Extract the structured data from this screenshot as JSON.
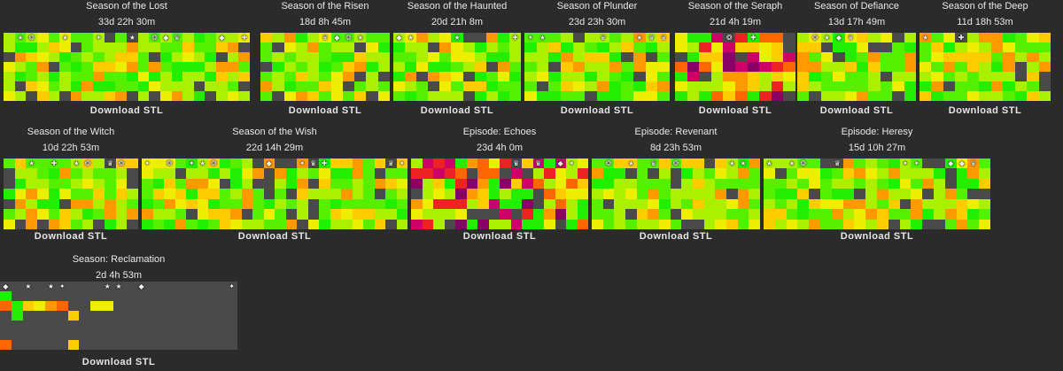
{
  "download_label": "Download STL",
  "seasons": [
    {
      "name": "Season of the Lost",
      "duration": "33d 22h 30m",
      "cols": 22,
      "rows": 7
    },
    {
      "name": "Season of the Risen",
      "duration": "18d 8h 45m",
      "cols": 11,
      "rows": 7
    },
    {
      "name": "Season of the Haunted",
      "duration": "20d 21h 8m",
      "cols": 11,
      "rows": 7
    },
    {
      "name": "Season of Plunder",
      "duration": "23d 23h 30m",
      "cols": 12,
      "rows": 7
    },
    {
      "name": "Season of the Seraph",
      "duration": "21d 4h 19m",
      "cols": 10,
      "rows": 7
    },
    {
      "name": "Season of Defiance",
      "duration": "13d 17h 49m",
      "cols": 10,
      "rows": 7
    },
    {
      "name": "Season of the Deep",
      "duration": "11d 18h 53m",
      "cols": 11,
      "rows": 7
    },
    {
      "name": "Season of the Witch",
      "duration": "10d 22h 53m",
      "cols": 12,
      "rows": 7
    },
    {
      "name": "Season of the Wish",
      "duration": "22d 14h 29m",
      "cols": 24,
      "rows": 7
    },
    {
      "name": "Episode: Echoes",
      "duration": "23d 4h 0m",
      "cols": 16,
      "rows": 7
    },
    {
      "name": "Episode: Revenant",
      "duration": "8d 23h 53m",
      "cols": 15,
      "rows": 7
    },
    {
      "name": "Episode: Heresy",
      "duration": "15d 10h 27m",
      "cols": 20,
      "rows": 7
    },
    {
      "name": "Season: Reclamation",
      "duration": "2d 4h 53m",
      "cols": 21,
      "rows": 7
    }
  ],
  "palette": {
    "bright_green": "#22ee00",
    "green": "#55f000",
    "yellow_green": "#aaf000",
    "yellow": "#eeee00",
    "gold": "#ffcc00",
    "orange": "#ff9900",
    "deep_orange": "#ff6600",
    "red": "#ee2222",
    "magenta": "#cc0066",
    "purple": "#880066",
    "black": "#110011",
    "empty": "#4a4a4a"
  },
  "icon_names": [
    "emblem-icon",
    "cross-icon",
    "star-icon",
    "shield-icon",
    "crown-icon",
    "sigil-icon"
  ]
}
